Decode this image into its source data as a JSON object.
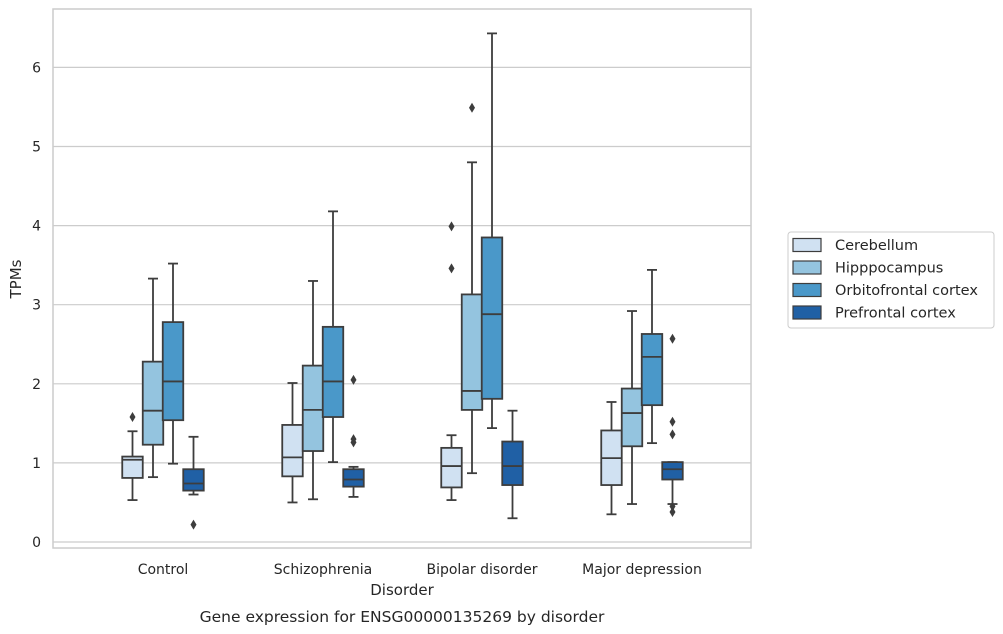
{
  "chart_data": {
    "type": "boxplot",
    "title": "",
    "caption": "Gene expression for ENSG00000135269 by disorder",
    "xlabel": "Disorder",
    "ylabel": "TPMs",
    "ylim": [
      -0.08,
      6.75
    ],
    "yticks": [
      0,
      1,
      2,
      3,
      4,
      5,
      6
    ],
    "grid": "horizontal",
    "legend_position": "right",
    "categories": [
      "Control",
      "Schizophrenia",
      "Bipolar disorder",
      "Major depression"
    ],
    "series": [
      {
        "name": "Cerebellum",
        "color": "#d0e1f2",
        "boxes": [
          {
            "whislo": 0.53,
            "q1": 0.81,
            "med": 1.04,
            "q3": 1.08,
            "whishi": 1.4,
            "fliers": [
              1.58
            ]
          },
          {
            "whislo": 0.5,
            "q1": 0.83,
            "med": 1.07,
            "q3": 1.48,
            "whishi": 2.01,
            "fliers": []
          },
          {
            "whislo": 0.53,
            "q1": 0.69,
            "med": 0.96,
            "q3": 1.19,
            "whishi": 1.35,
            "fliers": [
              3.46,
              3.99
            ]
          },
          {
            "whislo": 0.35,
            "q1": 0.72,
            "med": 1.06,
            "q3": 1.41,
            "whishi": 1.77,
            "fliers": []
          }
        ]
      },
      {
        "name": "Hipppocampus",
        "color": "#94c4df",
        "boxes": [
          {
            "whislo": 0.82,
            "q1": 1.23,
            "med": 1.66,
            "q3": 2.28,
            "whishi": 3.33,
            "fliers": []
          },
          {
            "whislo": 0.54,
            "q1": 1.15,
            "med": 1.67,
            "q3": 2.23,
            "whishi": 3.3,
            "fliers": []
          },
          {
            "whislo": 0.87,
            "q1": 1.67,
            "med": 1.91,
            "q3": 3.13,
            "whishi": 4.8,
            "fliers": [
              5.49
            ]
          },
          {
            "whislo": 0.48,
            "q1": 1.21,
            "med": 1.63,
            "q3": 1.94,
            "whishi": 2.92,
            "fliers": []
          }
        ]
      },
      {
        "name": "Orbitofrontal cortex",
        "color": "#4a98c9",
        "boxes": [
          {
            "whislo": 0.99,
            "q1": 1.54,
            "med": 2.03,
            "q3": 2.78,
            "whishi": 3.52,
            "fliers": []
          },
          {
            "whislo": 1.01,
            "q1": 1.58,
            "med": 2.03,
            "q3": 2.72,
            "whishi": 4.18,
            "fliers": []
          },
          {
            "whislo": 1.44,
            "q1": 1.81,
            "med": 2.88,
            "q3": 3.85,
            "whishi": 6.43,
            "fliers": []
          },
          {
            "whislo": 1.25,
            "q1": 1.73,
            "med": 2.34,
            "q3": 2.63,
            "whishi": 3.44,
            "fliers": []
          }
        ]
      },
      {
        "name": "Prefrontal cortex",
        "color": "#2060a5",
        "boxes": [
          {
            "whislo": 0.6,
            "q1": 0.65,
            "med": 0.74,
            "q3": 0.92,
            "whishi": 1.33,
            "fliers": [
              0.22
            ]
          },
          {
            "whislo": 0.57,
            "q1": 0.7,
            "med": 0.79,
            "q3": 0.92,
            "whishi": 0.95,
            "fliers": [
              1.26,
              1.3,
              2.05
            ]
          },
          {
            "whislo": 0.3,
            "q1": 0.72,
            "med": 0.96,
            "q3": 1.27,
            "whishi": 1.66,
            "fliers": []
          },
          {
            "whislo": 0.48,
            "q1": 0.79,
            "med": 0.92,
            "q3": 1.01,
            "whishi": 1.01,
            "fliers": [
              0.38,
              0.45,
              1.36,
              1.52,
              2.57
            ]
          }
        ]
      }
    ]
  }
}
